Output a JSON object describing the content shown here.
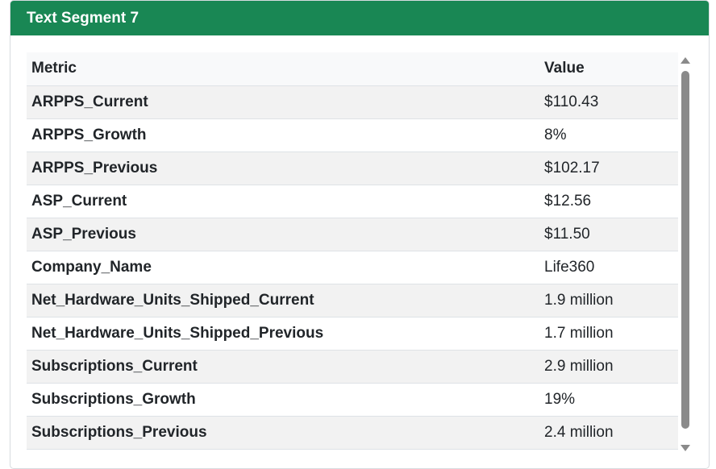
{
  "card": {
    "title": "Text Segment 7",
    "accent_color": "#198754"
  },
  "table": {
    "headers": [
      "Metric",
      "Value"
    ],
    "rows": [
      {
        "metric": "ARPPS_Current",
        "value": "$110.43"
      },
      {
        "metric": "ARPPS_Growth",
        "value": "8%"
      },
      {
        "metric": "ARPPS_Previous",
        "value": "$102.17"
      },
      {
        "metric": "ASP_Current",
        "value": "$12.56"
      },
      {
        "metric": "ASP_Previous",
        "value": "$11.50"
      },
      {
        "metric": "Company_Name",
        "value": "Life360"
      },
      {
        "metric": "Net_Hardware_Units_Shipped_Current",
        "value": "1.9 million"
      },
      {
        "metric": "Net_Hardware_Units_Shipped_Previous",
        "value": "1.7 million"
      },
      {
        "metric": "Subscriptions_Current",
        "value": "2.9 million"
      },
      {
        "metric": "Subscriptions_Growth",
        "value": "19%"
      },
      {
        "metric": "Subscriptions_Previous",
        "value": "2.4 million"
      }
    ]
  },
  "scrollbar": {
    "up_icon": "triangle-up-icon",
    "down_icon": "triangle-down-icon"
  }
}
